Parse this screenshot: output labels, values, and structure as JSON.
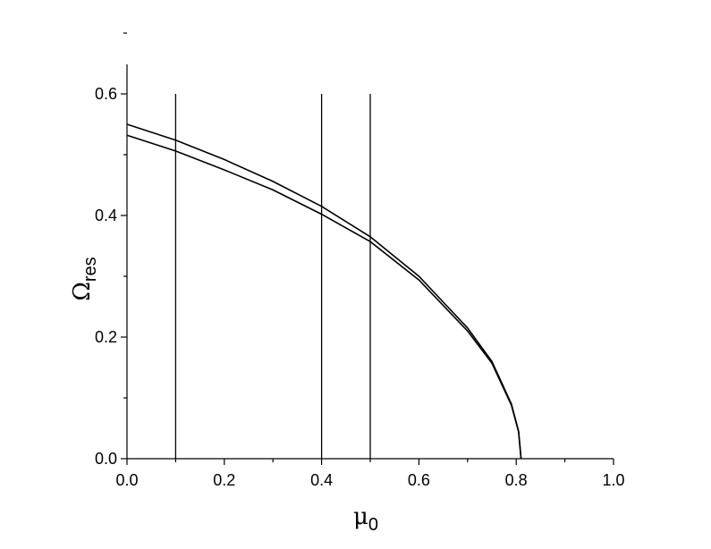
{
  "chart_data": {
    "type": "line",
    "title": "",
    "xlabel": {
      "main": "μ",
      "sub": "0"
    },
    "ylabel": {
      "main": "Ω",
      "sub": "res"
    },
    "xlim": [
      0.0,
      1.0
    ],
    "ylim": [
      0.0,
      0.6
    ],
    "x_ticks": [
      "0.0",
      "0.2",
      "0.4",
      "0.6",
      "0.8",
      "1.0"
    ],
    "y_ticks": [
      "0.0",
      "0.2",
      "0.4",
      "0.6"
    ],
    "grid": false,
    "legend": "none",
    "vertical_lines": [
      0.1,
      0.4,
      0.5
    ],
    "series": [
      {
        "x": [
          0.0,
          0.1,
          0.2,
          0.3,
          0.4,
          0.5,
          0.6,
          0.7,
          0.75,
          0.79,
          0.805,
          0.81
        ],
        "y": [
          0.55,
          0.524,
          0.492,
          0.456,
          0.415,
          0.365,
          0.3,
          0.215,
          0.16,
          0.09,
          0.045,
          0.0
        ]
      },
      {
        "x": [
          0.0,
          0.1,
          0.2,
          0.3,
          0.4,
          0.5,
          0.6,
          0.7,
          0.75,
          0.79,
          0.805,
          0.81
        ],
        "y": [
          0.532,
          0.506,
          0.475,
          0.442,
          0.402,
          0.357,
          0.294,
          0.21,
          0.157,
          0.088,
          0.044,
          0.0
        ]
      }
    ]
  }
}
